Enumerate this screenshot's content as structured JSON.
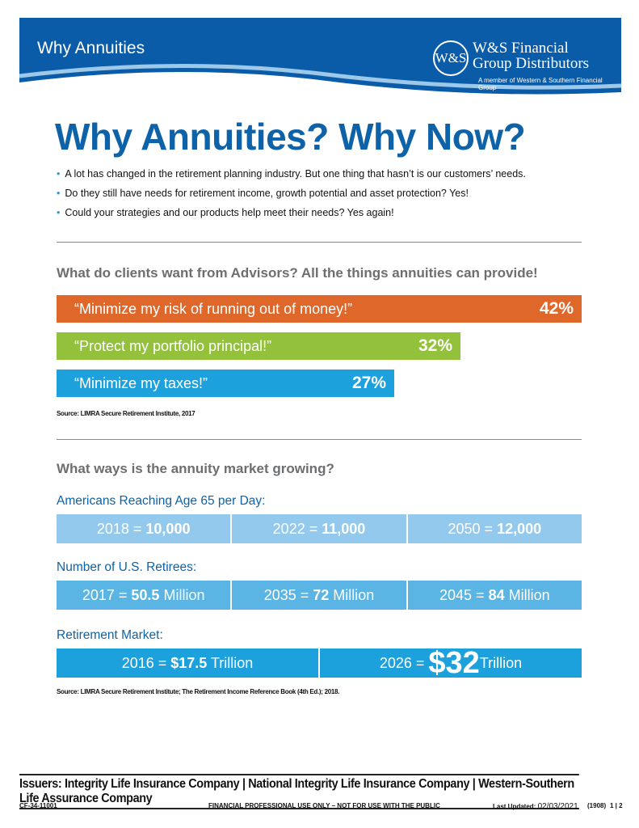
{
  "header": {
    "section": "Why Annuities",
    "logo_monogram": "W&S",
    "logo_line1": "W&S Financial",
    "logo_line2": "Group Distributors",
    "logo_tagline": "A member of Western & Southern Financial Group",
    "color": "#0b5ca8"
  },
  "title": "Why Annuities? Why Now?",
  "bullets": [
    "A lot has changed in the retirement planning industry. But one thing that hasn’t is our customers’ needs.",
    "Do they still have needs for retirement income, growth potential and asset protection? Yes!",
    "Could your strategies and our products help meet their needs? Yes again!"
  ],
  "clients": {
    "heading": "What do clients want from Advisors? All the things annuities can provide!",
    "bars": [
      {
        "label": "“Minimize my risk of running out of money!”",
        "value": "42%",
        "pct": 42,
        "color": "#e0672a"
      },
      {
        "label": "“Protect my portfolio principal!”",
        "value": "32%",
        "pct": 32,
        "color": "#93c13c"
      },
      {
        "label": "“Minimize my taxes!”",
        "value": "27%",
        "pct": 27,
        "color": "#1da1dc"
      }
    ],
    "source": "Source: LIMRA Secure Retirement Institute, 2017"
  },
  "market": {
    "heading": "What ways is the annuity market growing?",
    "age65": {
      "title": "Americans Reaching Age 65 per Day:",
      "cells": [
        {
          "pre": "2018 = ",
          "val": "10,000",
          "post": ""
        },
        {
          "pre": "2022 = ",
          "val": "11,000",
          "post": ""
        },
        {
          "pre": "2050 = ",
          "val": "12,000",
          "post": ""
        }
      ]
    },
    "retirees": {
      "title": "Number of U.S. Retirees:",
      "cells": [
        {
          "pre": "2017 = ",
          "val": "50.5",
          "post": " Million"
        },
        {
          "pre": "2035 = ",
          "val": "72",
          "post": " Million"
        },
        {
          "pre": "2045 = ",
          "val": "84",
          "post": " Million"
        }
      ]
    },
    "retirement": {
      "title": "Retirement Market:",
      "cells": [
        {
          "pre": "2016 = ",
          "val": "$17.5",
          "post": " Trillion"
        },
        {
          "pre": "2026 = ",
          "val": "$32",
          "post": "Trillion"
        }
      ]
    },
    "source": "Source: LIMRA Secure Retirement Institute; The Retirement Income Reference Book (4th Ed.); 2018."
  },
  "footer": {
    "issuers": "Issuers: Integrity Life Insurance Company | National Integrity Life Insurance Company | Western-Southern Life Assurance Company",
    "code": "CF-34-11001",
    "notice": "FINANCIAL PROFESSIONAL USE ONLY – NOT FOR USE WITH THE PUBLIC",
    "updated_label": "Last Updated:",
    "updated": "02/03/2021",
    "version": "(1908)",
    "page": "1 | 2"
  }
}
